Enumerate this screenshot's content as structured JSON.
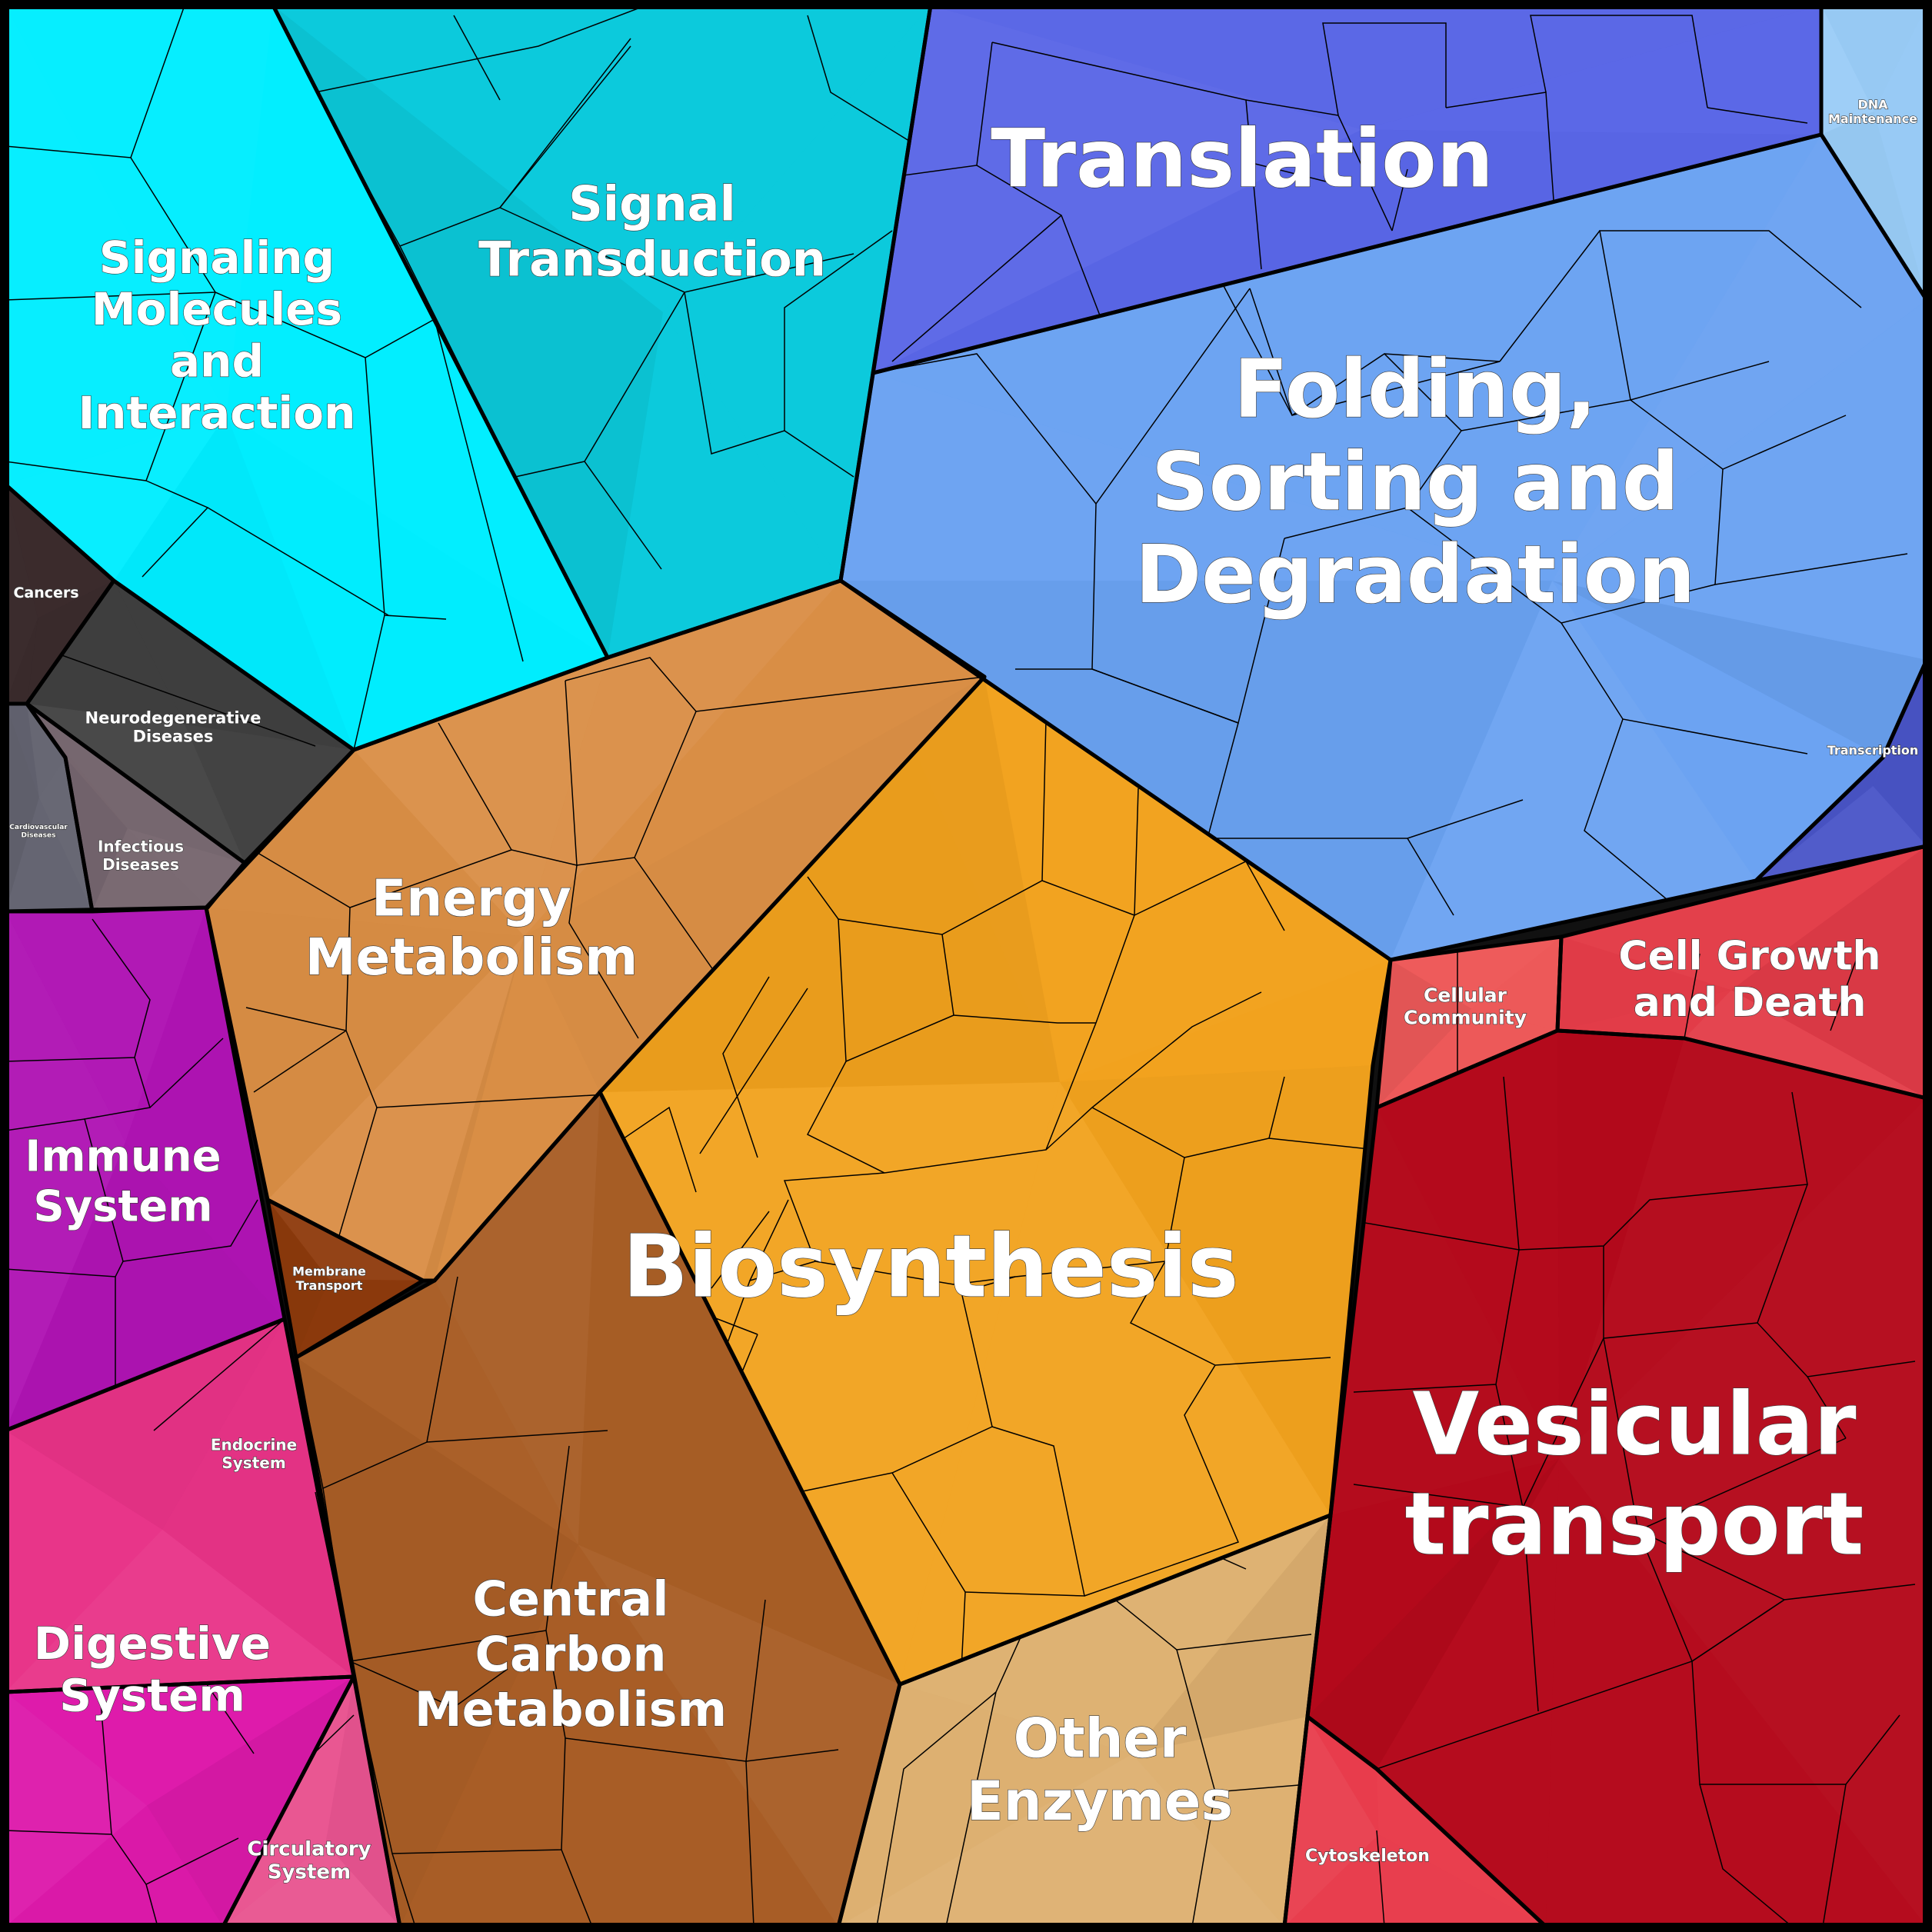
{
  "title": "",
  "categories": [
    {
      "id": "translation",
      "lines": [
        "Translation"
      ],
      "color": "#5a66e6",
      "weight": "bold"
    },
    {
      "id": "dna-maintenance",
      "lines": [
        "DNA",
        "Maintenance"
      ],
      "color": "#99ccf7",
      "weight": "normal"
    },
    {
      "id": "folding",
      "lines": [
        "Folding,",
        "Sorting and",
        "Degradation"
      ],
      "color": "#6aa2f2",
      "weight": "bold"
    },
    {
      "id": "transcription",
      "lines": [
        "Transcription"
      ],
      "color": "#4a55c8",
      "weight": "normal"
    },
    {
      "id": "signal-transduction",
      "lines": [
        "Signal",
        "Transduction"
      ],
      "color": "#0ccadc",
      "weight": "bold"
    },
    {
      "id": "signaling-molecules",
      "lines": [
        "Signaling",
        "Molecules",
        "and",
        "Interaction"
      ],
      "color": "#00eeff",
      "weight": "bold"
    },
    {
      "id": "cancers",
      "lines": [
        "Cancers"
      ],
      "color": "#3a2a2c",
      "weight": "bold"
    },
    {
      "id": "neurodegenerative",
      "lines": [
        "Neurodegenerative",
        "Diseases"
      ],
      "color": "#404040",
      "weight": "bold"
    },
    {
      "id": "cardiovascular",
      "lines": [
        "Cardiovascular",
        "Diseases"
      ],
      "color": "#636370",
      "weight": "bold"
    },
    {
      "id": "infectious",
      "lines": [
        "Infectious",
        "Diseases"
      ],
      "color": "#77676f",
      "weight": "bold"
    },
    {
      "id": "energy-metabolism",
      "lines": [
        "Energy",
        "Metabolism"
      ],
      "color": "#d98e45",
      "weight": "bold"
    },
    {
      "id": "biosynthesis",
      "lines": [
        "Biosynthesis"
      ],
      "color": "#f2a21e",
      "weight": "bold"
    },
    {
      "id": "cellular-community",
      "lines": [
        "Cellular",
        "Community"
      ],
      "color": "#ee5a5a",
      "weight": "bold"
    },
    {
      "id": "cell-growth",
      "lines": [
        "Cell Growth",
        "and Death"
      ],
      "color": "#e23c48",
      "weight": "bold"
    },
    {
      "id": "immune-system",
      "lines": [
        "Immune",
        "System"
      ],
      "color": "#b014b4",
      "weight": "bold"
    },
    {
      "id": "membrane-transport",
      "lines": [
        "Membrane",
        "Transport"
      ],
      "color": "#8e3a0c",
      "weight": "bold"
    },
    {
      "id": "vesicular-transport",
      "lines": [
        "Vesicular",
        "transport"
      ],
      "color": "#b40a1c",
      "weight": "bold"
    },
    {
      "id": "endocrine-system",
      "lines": [
        "Endocrine",
        "System"
      ],
      "color": "#e83388",
      "weight": "bold"
    },
    {
      "id": "central-carbon",
      "lines": [
        "Central",
        "Carbon",
        "Metabolism"
      ],
      "color": "#a85e26",
      "weight": "bold"
    },
    {
      "id": "digestive-system",
      "lines": [
        "Digestive",
        "System"
      ],
      "color": "#dd1aaa",
      "weight": "bold"
    },
    {
      "id": "circulatory-system",
      "lines": [
        "Circulatory",
        "System"
      ],
      "color": "#e85490",
      "weight": "bold"
    },
    {
      "id": "other-enzymes",
      "lines": [
        "Other",
        "Enzymes"
      ],
      "color": "#ddb070",
      "weight": "bold"
    },
    {
      "id": "cytoskeleton",
      "lines": [
        "Cytoskeleton"
      ],
      "color": "#e83c4c",
      "weight": "bold"
    }
  ]
}
